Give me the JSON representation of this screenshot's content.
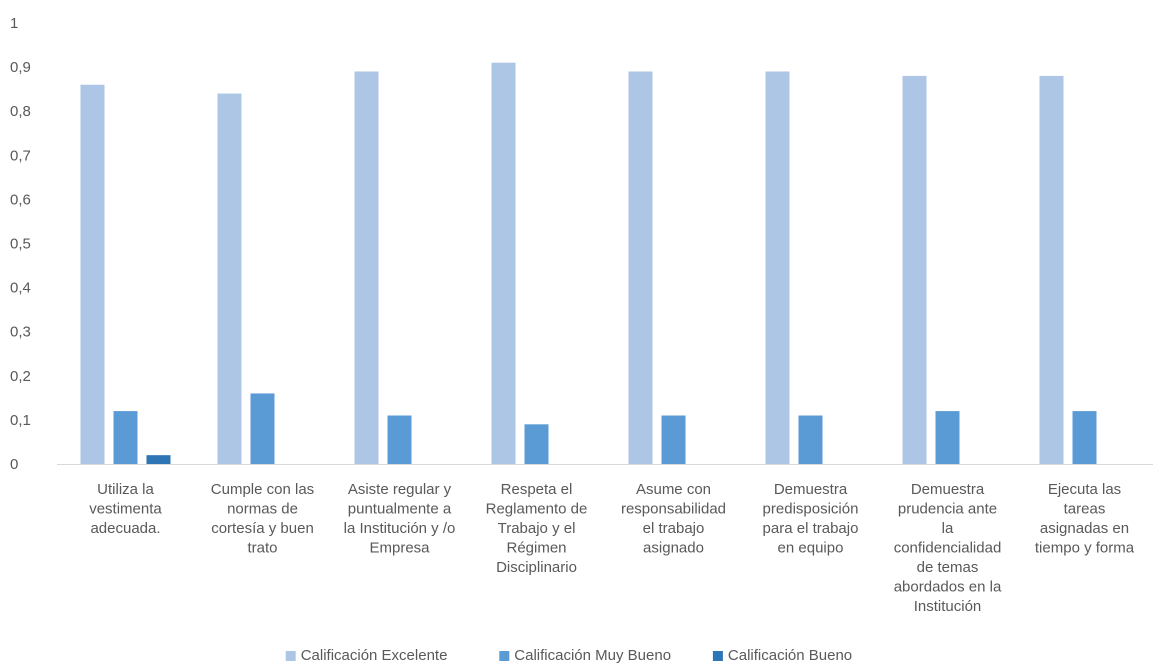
{
  "chart_data": {
    "type": "bar",
    "categories": [
      [
        "Utiliza la",
        "vestimenta",
        "adecuada."
      ],
      [
        "Cumple con las",
        "normas de",
        "cortesía y buen",
        "trato"
      ],
      [
        "Asiste regular y",
        "puntualmente a",
        "la Institución y /o",
        "Empresa"
      ],
      [
        "Respeta el",
        "Reglamento de",
        "Trabajo y el",
        "Régimen",
        "Disciplinario"
      ],
      [
        "Asume con",
        "responsabilidad",
        "el trabajo",
        "asignado"
      ],
      [
        "Demuestra",
        "predisposición",
        "para el trabajo",
        "en equipo"
      ],
      [
        "Demuestra",
        "prudencia ante",
        "la",
        "confidencialidad",
        "de temas",
        "abordados en la",
        "Institución"
      ],
      [
        "Ejecuta las",
        "tareas",
        "asignadas en",
        "tiempo y forma"
      ]
    ],
    "series": [
      {
        "name": "Calificación Excelente",
        "color": "#adc6e6",
        "values": [
          0.86,
          0.84,
          0.89,
          0.91,
          0.89,
          0.89,
          0.88,
          0.88
        ]
      },
      {
        "name": "Calificación Muy Bueno",
        "color": "#5b9bd5",
        "values": [
          0.12,
          0.16,
          0.11,
          0.09,
          0.11,
          0.11,
          0.12,
          0.12
        ]
      },
      {
        "name": "Calificación Bueno",
        "color": "#2e75b6",
        "values": [
          0.02,
          0,
          0,
          0,
          0,
          0,
          0,
          0
        ]
      }
    ],
    "y_ticks": [
      "0",
      "0,1",
      "0,2",
      "0,3",
      "0,4",
      "0,5",
      "0,6",
      "0,7",
      "0,8",
      "0,9",
      "1"
    ],
    "ylim": [
      0,
      1
    ],
    "grid": false,
    "legend_position": "bottom",
    "title": "",
    "xlabel": "",
    "ylabel": ""
  }
}
